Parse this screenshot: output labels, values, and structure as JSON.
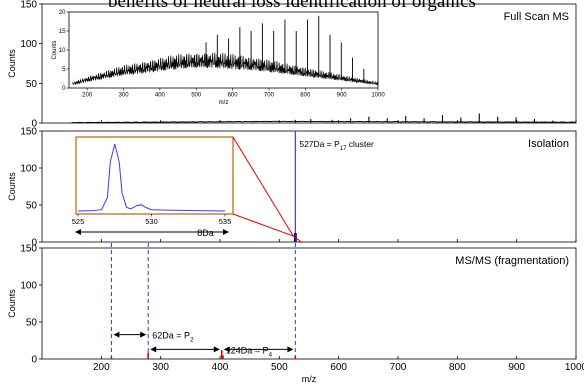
{
  "heading": "benefits of neutral loss identification of organics",
  "colors": {
    "spectrum": "#000000",
    "isolation": "#3a3aff",
    "fragment": "#e00000",
    "inset_border": "#c8782a",
    "guide": "#1f3fd6"
  },
  "chart_data": [
    {
      "id": "full-scan",
      "type": "line",
      "panel_label": "Full Scan MS",
      "ylabel": "Counts",
      "ylim": [
        0,
        150
      ],
      "yticks": [
        0,
        50,
        100,
        150
      ],
      "xlim": [
        100,
        1000
      ],
      "peaks": [
        {
          "mz": 527,
          "counts": 4
        },
        {
          "mz": 553,
          "counts": 5
        },
        {
          "mz": 589,
          "counts": 4
        },
        {
          "mz": 620,
          "counts": 6
        },
        {
          "mz": 651,
          "counts": 8
        },
        {
          "mz": 682,
          "counts": 6
        },
        {
          "mz": 713,
          "counts": 9
        },
        {
          "mz": 744,
          "counts": 6
        },
        {
          "mz": 775,
          "counts": 10
        },
        {
          "mz": 806,
          "counts": 7
        },
        {
          "mz": 837,
          "counts": 12
        },
        {
          "mz": 868,
          "counts": 8
        },
        {
          "mz": 899,
          "counts": 7
        },
        {
          "mz": 930,
          "counts": 5
        },
        {
          "mz": 961,
          "counts": 3
        }
      ],
      "inset": {
        "xlim": [
          150,
          1000
        ],
        "ylim": [
          0,
          20
        ],
        "xticks": [
          200,
          300,
          400,
          500,
          600,
          700,
          800,
          900,
          1000
        ],
        "yticks": [
          0,
          5,
          10,
          15,
          20
        ],
        "xlabel": "m/z",
        "ylabel": "Counts",
        "envelope": [
          [
            160,
            1.5
          ],
          [
            200,
            3
          ],
          [
            250,
            4.5
          ],
          [
            300,
            6
          ],
          [
            350,
            7
          ],
          [
            400,
            8
          ],
          [
            450,
            9
          ],
          [
            500,
            9.5
          ],
          [
            550,
            9.5
          ],
          [
            600,
            9
          ],
          [
            650,
            8.5
          ],
          [
            700,
            7.5
          ],
          [
            750,
            6.5
          ],
          [
            800,
            5.5
          ],
          [
            850,
            4.5
          ],
          [
            900,
            3.5
          ],
          [
            950,
            2.5
          ],
          [
            1000,
            1.5
          ]
        ],
        "peaks": [
          {
            "mz": 527,
            "counts": 12
          },
          {
            "mz": 558,
            "counts": 14
          },
          {
            "mz": 589,
            "counts": 13
          },
          {
            "mz": 620,
            "counts": 16
          },
          {
            "mz": 651,
            "counts": 15
          },
          {
            "mz": 682,
            "counts": 17
          },
          {
            "mz": 713,
            "counts": 15
          },
          {
            "mz": 744,
            "counts": 18
          },
          {
            "mz": 775,
            "counts": 15
          },
          {
            "mz": 806,
            "counts": 18
          },
          {
            "mz": 837,
            "counts": 19
          },
          {
            "mz": 868,
            "counts": 14
          },
          {
            "mz": 899,
            "counts": 12
          },
          {
            "mz": 930,
            "counts": 8
          },
          {
            "mz": 961,
            "counts": 5
          }
        ]
      }
    },
    {
      "id": "isolation",
      "type": "bar",
      "panel_label": "Isolation",
      "ylabel": "Counts",
      "ylim": [
        0,
        150
      ],
      "yticks": [
        0,
        50,
        100,
        150
      ],
      "xlim": [
        100,
        1000
      ],
      "isolated_peak": {
        "mz": 527,
        "counts": 150
      },
      "peak_label": {
        "prefix": "527Da = P",
        "subscript": "17",
        "suffix": " cluster"
      },
      "inset": {
        "xlim": [
          525,
          535
        ],
        "xticks": [
          525,
          530,
          535
        ],
        "ylim": [
          0,
          150
        ],
        "profile": [
          [
            525,
            0
          ],
          [
            526,
            1
          ],
          [
            526.6,
            3
          ],
          [
            527,
            30
          ],
          [
            527.2,
            110
          ],
          [
            527.5,
            150
          ],
          [
            527.8,
            110
          ],
          [
            528,
            40
          ],
          [
            528.3,
            8
          ],
          [
            528.6,
            5
          ],
          [
            529,
            12
          ],
          [
            529.3,
            14
          ],
          [
            529.6,
            8
          ],
          [
            530,
            3
          ],
          [
            531,
            2
          ],
          [
            533,
            1
          ],
          [
            535,
            0
          ]
        ]
      },
      "window": {
        "from": 523,
        "to": 531,
        "label": "8Da"
      }
    },
    {
      "id": "msms",
      "type": "bar",
      "panel_label": "MS/MS (fragmentation)",
      "ylabel": "Counts",
      "xlabel": "m/z",
      "ylim": [
        0,
        150
      ],
      "yticks": [
        0,
        50,
        100,
        150
      ],
      "xlim": [
        100,
        1000
      ],
      "xticks": [
        200,
        300,
        400,
        500,
        600,
        700,
        800,
        900,
        1000
      ],
      "peaks": [
        {
          "mz": 217,
          "counts": 3
        },
        {
          "mz": 279,
          "counts": 9
        },
        {
          "mz": 403,
          "counts": 12
        },
        {
          "mz": 405,
          "counts": 5
        },
        {
          "mz": 527,
          "counts": 4
        }
      ],
      "guides": [
        217,
        279,
        527
      ],
      "losses": [
        {
          "from": 217,
          "to": 279,
          "counts": 33,
          "prefix": "62Da = P",
          "subscript": "2"
        },
        {
          "from": 279,
          "to": 403,
          "counts": 13,
          "prefix": "124Da = P",
          "subscript": "4"
        },
        {
          "from": 403,
          "to": 527,
          "counts": 13
        }
      ]
    }
  ]
}
